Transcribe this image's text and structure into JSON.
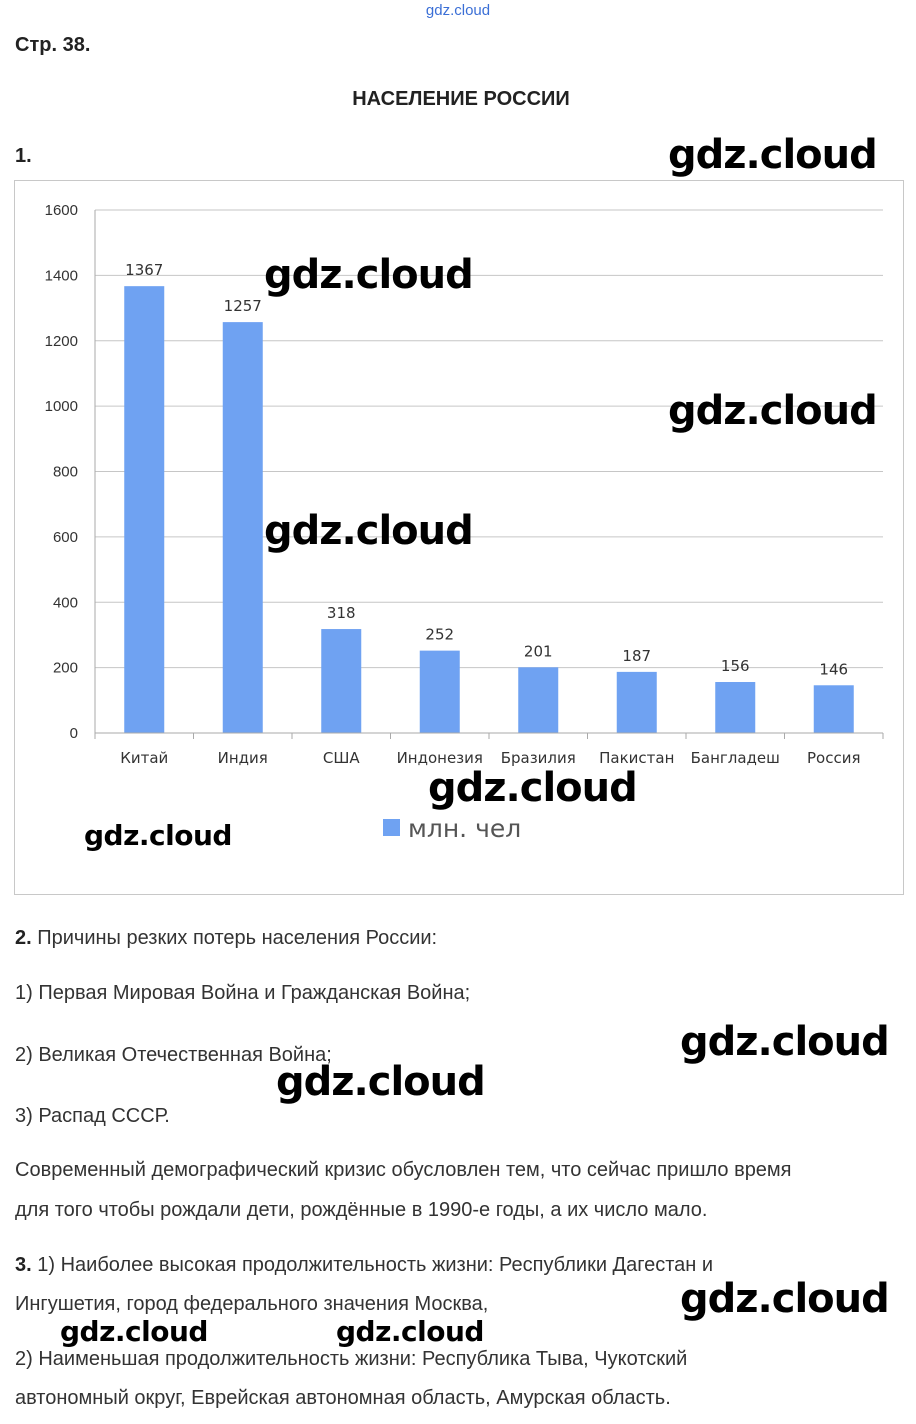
{
  "top_watermark": "gdz.cloud",
  "page_number": "Стр. 38.",
  "heading": "НАСЕЛЕНИЕ РОССИИ",
  "question1_label": "1.",
  "watermark": "gdz.cloud",
  "chart_data": {
    "type": "bar",
    "categories": [
      "Китай",
      "Индия",
      "США",
      "Индонезия",
      "Бразилия",
      "Пакистан",
      "Бангладеш",
      "Россия"
    ],
    "series": [
      {
        "name": "млн. чел",
        "values": [
          1367,
          1257,
          318,
          252,
          201,
          187,
          156,
          146
        ]
      }
    ],
    "data_labels": [
      "1367",
      "1257",
      "318",
      "252",
      "201",
      "187",
      "156",
      "146"
    ],
    "ylim": [
      0,
      1600
    ],
    "yticks": [
      "0",
      "200",
      "400",
      "600",
      "800",
      "1000",
      "1200",
      "1400",
      "1600"
    ],
    "grid": true,
    "legend_position": "bottom",
    "bar_color": "#6fa2f2",
    "title": "",
    "xlabel": "",
    "ylabel": ""
  },
  "q2": {
    "number": "2.",
    "intro": " Причины резких потерь населения России:",
    "item1": "1) Первая Мировая Война и Гражданская Война;",
    "item2": "2) Великая Отечественная Война;",
    "item3": "3) Распад СССР.",
    "para_line1": "Современный демографический кризис обусловлен тем, что сейчас пришло время",
    "para_line2": "для того чтобы рождали дети, рождённые в 1990-е годы, а их число мало."
  },
  "q3": {
    "number": "3.",
    "line1": " 1) Наиболее высокая продолжительность жизни: Республики Дагестан и",
    "line2": "Ингушетия, город федерального значения Москва,",
    "line3": "2) Наименьшая продолжительность жизни: Республика Тыва, Чукотский",
    "line4": "автономный округ, Еврейская автономная область, Амурская область."
  }
}
